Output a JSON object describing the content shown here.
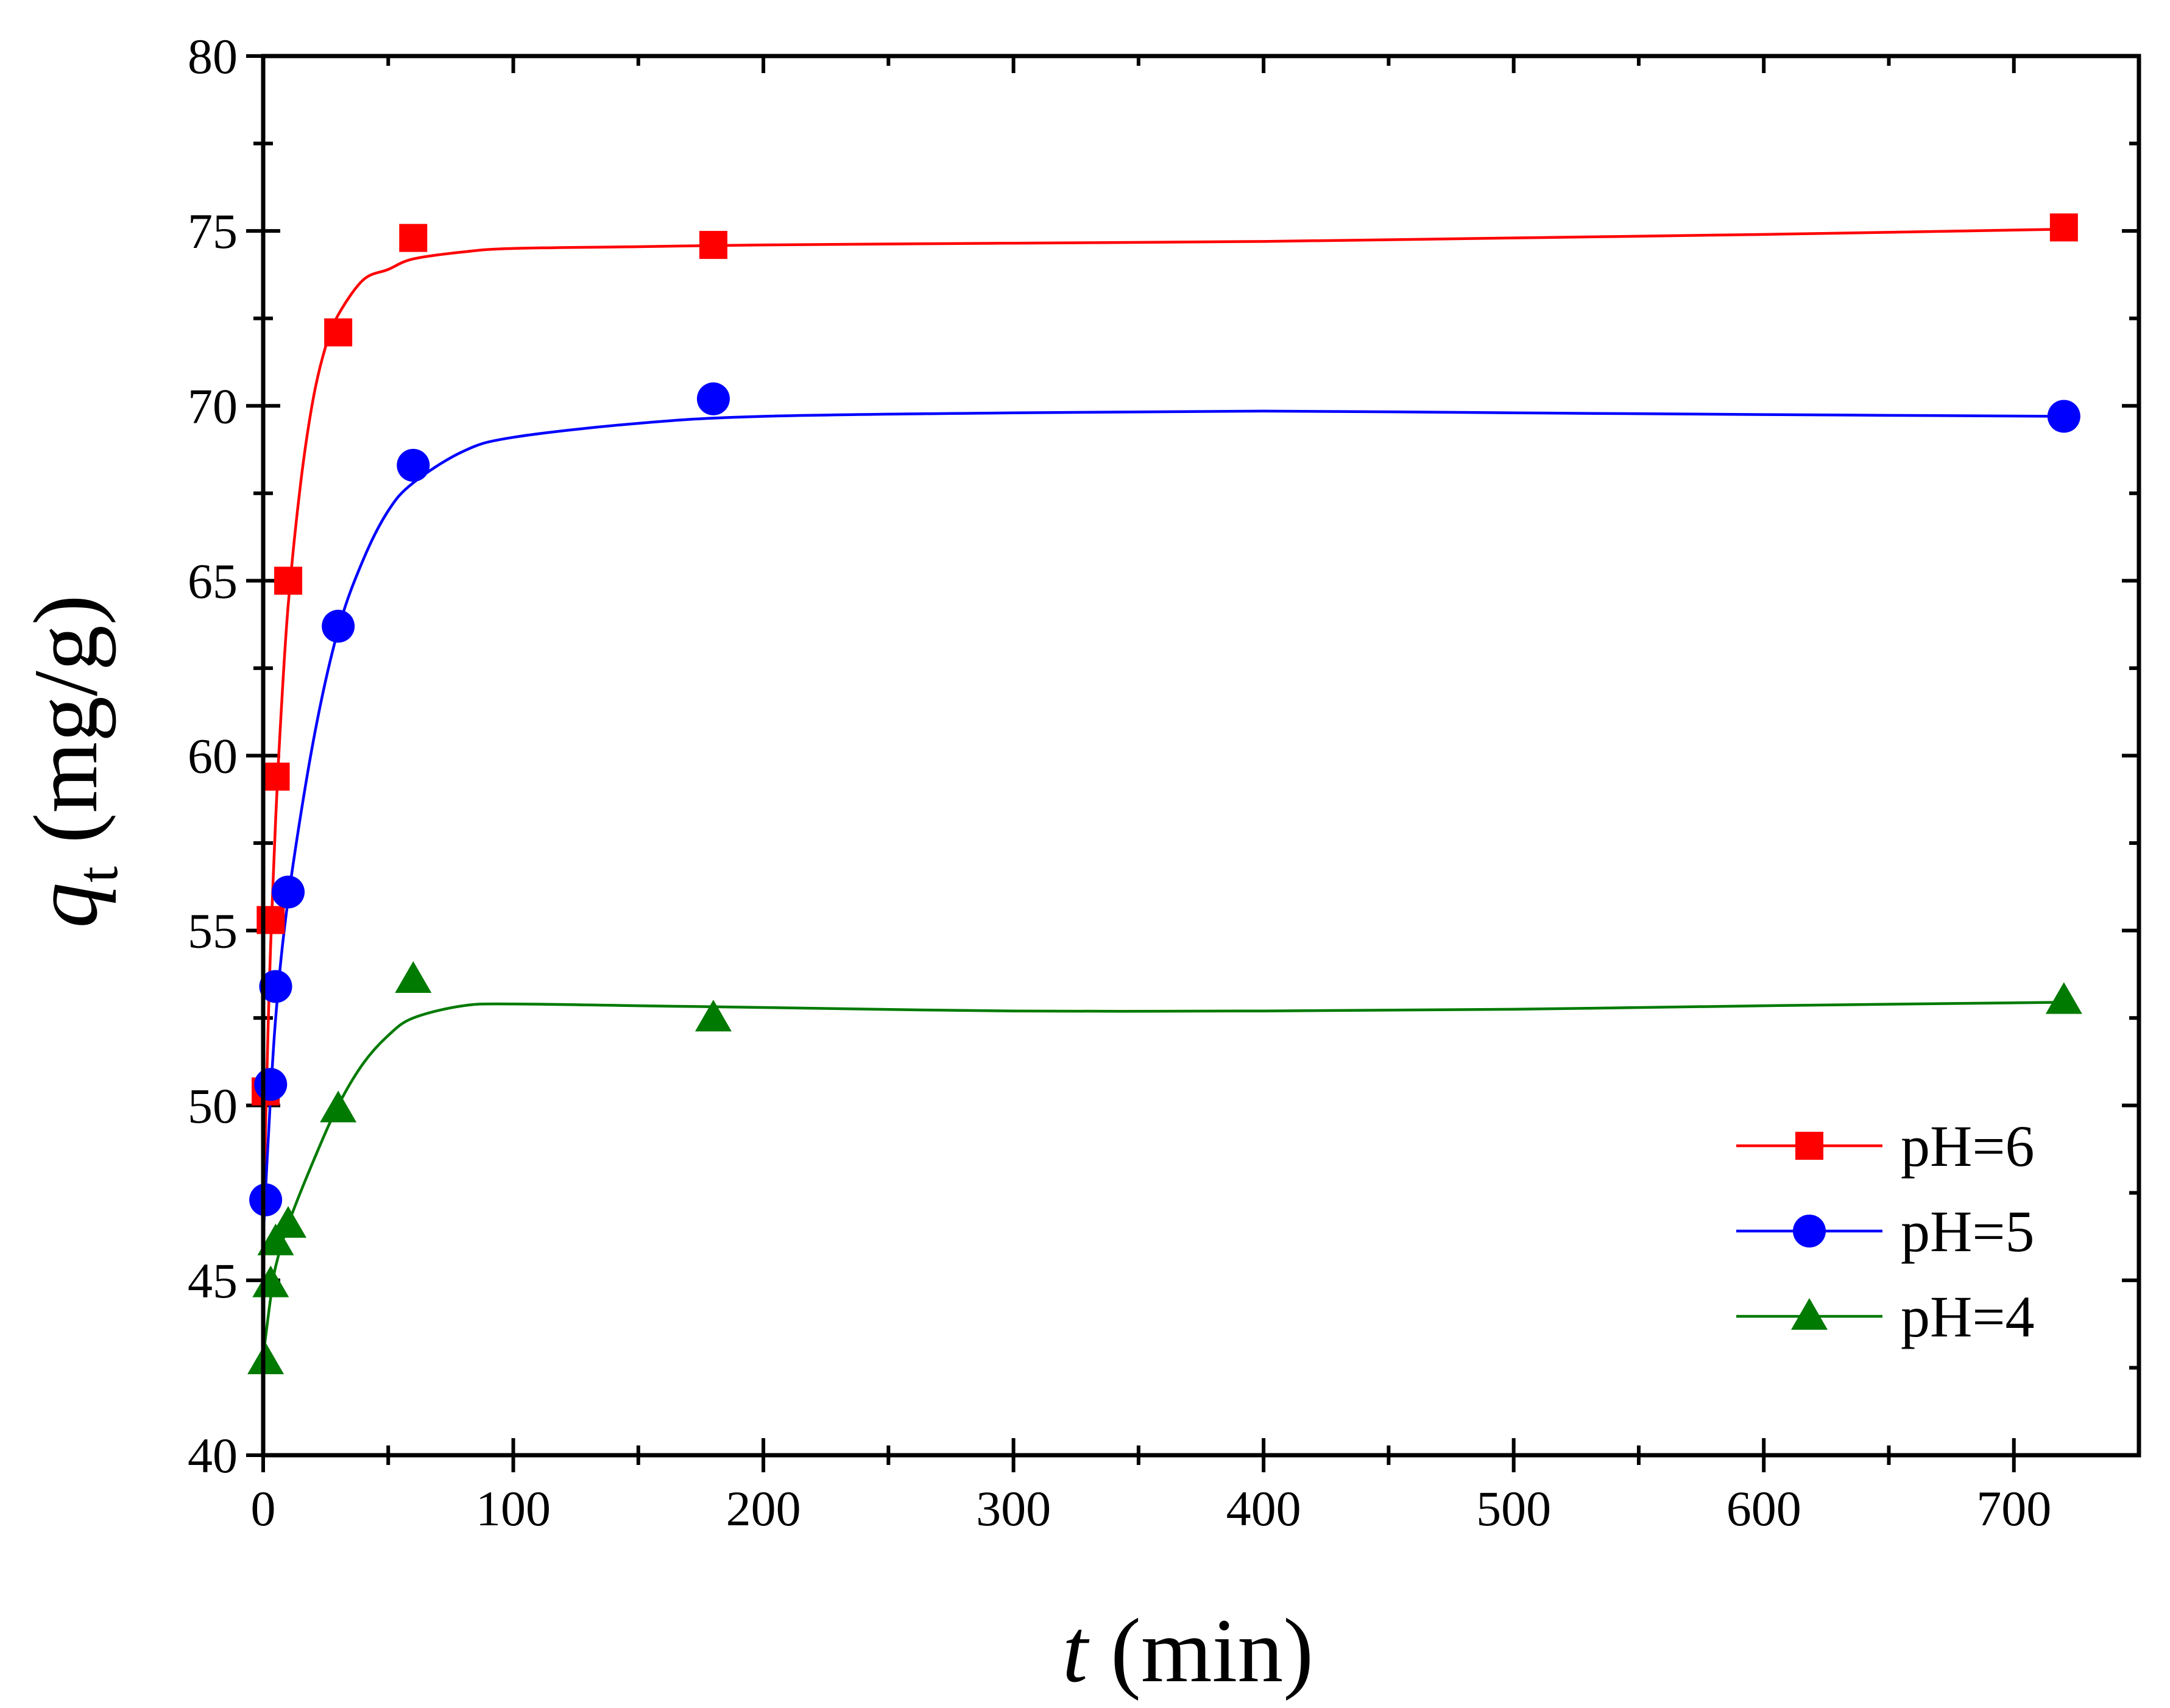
{
  "chart_data": {
    "type": "scatter",
    "x_axis": {
      "label_var": "t",
      "label_unit": " (min)",
      "range": [
        0,
        750
      ],
      "ticks": [
        0,
        100,
        200,
        300,
        400,
        500,
        600,
        700
      ],
      "minor_step": 50
    },
    "y_axis": {
      "label_var": "q",
      "label_sub": "t",
      "label_unit": " (mg/g)",
      "range": [
        40,
        80
      ],
      "ticks": [
        40,
        45,
        50,
        55,
        60,
        65,
        70,
        75,
        80
      ],
      "minor_step": 2.5
    },
    "legend_position": "bottom-right",
    "series": [
      {
        "name": "pH=6",
        "color": "#ff0000",
        "marker": "square",
        "points": [
          [
            1,
            50.4
          ],
          [
            3,
            55.3
          ],
          [
            5,
            59.4
          ],
          [
            10,
            65.0
          ],
          [
            30,
            72.1
          ],
          [
            60,
            74.8
          ],
          [
            180,
            74.6
          ],
          [
            720,
            75.1
          ]
        ],
        "fit": [
          [
            0,
            46.5
          ],
          [
            1,
            49.5
          ],
          [
            2,
            52.3
          ],
          [
            3,
            54.6
          ],
          [
            5,
            58.2
          ],
          [
            7,
            61.0
          ],
          [
            10,
            64.3
          ],
          [
            15,
            67.8
          ],
          [
            20,
            70.2
          ],
          [
            25,
            71.7
          ],
          [
            30,
            72.6
          ],
          [
            40,
            73.6
          ],
          [
            50,
            73.9
          ],
          [
            60,
            74.2
          ],
          [
            80,
            74.4
          ],
          [
            100,
            74.5
          ],
          [
            150,
            74.55
          ],
          [
            200,
            74.6
          ],
          [
            300,
            74.65
          ],
          [
            400,
            74.7
          ],
          [
            500,
            74.8
          ],
          [
            600,
            74.9
          ],
          [
            720,
            75.05
          ]
        ]
      },
      {
        "name": "pH=5",
        "color": "#0000ff",
        "marker": "circle",
        "points": [
          [
            1,
            47.3
          ],
          [
            3,
            50.6
          ],
          [
            5,
            53.4
          ],
          [
            10,
            56.1
          ],
          [
            30,
            63.7
          ],
          [
            60,
            68.3
          ],
          [
            180,
            70.2
          ],
          [
            720,
            69.7
          ]
        ],
        "fit": [
          [
            0,
            46.2
          ],
          [
            2,
            49.0
          ],
          [
            5,
            52.5
          ],
          [
            10,
            55.9
          ],
          [
            20,
            60.4
          ],
          [
            30,
            63.6
          ],
          [
            40,
            65.6
          ],
          [
            50,
            67.0
          ],
          [
            60,
            67.8
          ],
          [
            80,
            68.7
          ],
          [
            100,
            69.1
          ],
          [
            150,
            69.5
          ],
          [
            200,
            69.7
          ],
          [
            300,
            69.8
          ],
          [
            400,
            69.85
          ],
          [
            500,
            69.8
          ],
          [
            600,
            69.75
          ],
          [
            720,
            69.7
          ]
        ]
      },
      {
        "name": "pH=4",
        "color": "#007a00",
        "marker": "triangle",
        "points": [
          [
            1,
            42.7
          ],
          [
            3,
            44.9
          ],
          [
            5,
            46.1
          ],
          [
            10,
            46.6
          ],
          [
            30,
            49.9
          ],
          [
            60,
            53.6
          ],
          [
            180,
            52.5
          ],
          [
            720,
            53.0
          ]
        ],
        "fit": [
          [
            0,
            42.8
          ],
          [
            1,
            43.4
          ],
          [
            3,
            44.5
          ],
          [
            5,
            45.4
          ],
          [
            10,
            46.6
          ],
          [
            20,
            48.4
          ],
          [
            30,
            50.0
          ],
          [
            40,
            51.2
          ],
          [
            50,
            52.0
          ],
          [
            60,
            52.5
          ],
          [
            80,
            52.85
          ],
          [
            100,
            52.9
          ],
          [
            150,
            52.85
          ],
          [
            200,
            52.8
          ],
          [
            300,
            52.7
          ],
          [
            400,
            52.7
          ],
          [
            500,
            52.75
          ],
          [
            600,
            52.85
          ],
          [
            720,
            52.95
          ]
        ]
      }
    ]
  }
}
